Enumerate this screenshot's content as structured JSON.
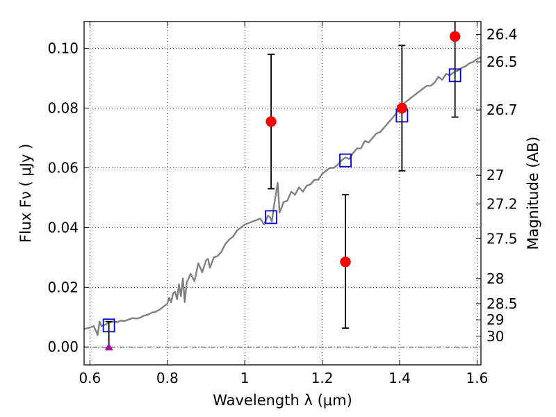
{
  "chart_data": {
    "type": "scatter",
    "xlabel": "Wavelength  λ (μm)",
    "ylabel": "Flux  Fν  ( μJy )",
    "y2label": "Magnitude (AB)",
    "xlim": [
      0.585,
      1.61
    ],
    "ylim": [
      -0.006,
      0.109
    ],
    "grid": true,
    "xticks": [
      {
        "v": 0.6,
        "label": "0.6"
      },
      {
        "v": 0.8,
        "label": "0.8"
      },
      {
        "v": 1.0,
        "label": "1"
      },
      {
        "v": 1.2,
        "label": "1.2"
      },
      {
        "v": 1.4,
        "label": "1.4"
      },
      {
        "v": 1.6,
        "label": "1.6"
      }
    ],
    "yticks": [
      {
        "v": 0.0,
        "label": "0.00"
      },
      {
        "v": 0.02,
        "label": "0.02"
      },
      {
        "v": 0.04,
        "label": "0.04"
      },
      {
        "v": 0.06,
        "label": "0.06"
      },
      {
        "v": 0.08,
        "label": "0.08"
      },
      {
        "v": 0.1,
        "label": "0.10"
      }
    ],
    "magnitude_ticks": [
      {
        "v": 0.1047,
        "label": "26.4"
      },
      {
        "v": 0.0955,
        "label": "26.5"
      },
      {
        "v": 0.0794,
        "label": "26.7"
      },
      {
        "v": 0.0575,
        "label": "27"
      },
      {
        "v": 0.0479,
        "label": "27.2"
      },
      {
        "v": 0.0363,
        "label": "27.5"
      },
      {
        "v": 0.0229,
        "label": "28"
      },
      {
        "v": 0.0145,
        "label": "28.5"
      },
      {
        "v": 0.0091,
        "label": "29"
      },
      {
        "v": 0.0036,
        "label": "30"
      }
    ],
    "sed_model": {
      "color": "#808080",
      "x": [
        0.585,
        0.6,
        0.61,
        0.62,
        0.625,
        0.63,
        0.64,
        0.65,
        0.66,
        0.67,
        0.68,
        0.69,
        0.7,
        0.71,
        0.72,
        0.73,
        0.74,
        0.75,
        0.76,
        0.77,
        0.78,
        0.79,
        0.8,
        0.805,
        0.81,
        0.815,
        0.82,
        0.825,
        0.83,
        0.835,
        0.84,
        0.845,
        0.85,
        0.86,
        0.87,
        0.88,
        0.89,
        0.9,
        0.905,
        0.91,
        0.92,
        0.93,
        0.94,
        0.95,
        0.96,
        0.97,
        0.98,
        0.99,
        1.0,
        1.01,
        1.02,
        1.03,
        1.04,
        1.05,
        1.06,
        1.065,
        1.07,
        1.075,
        1.08,
        1.085,
        1.09,
        1.1,
        1.11,
        1.12,
        1.13,
        1.14,
        1.15,
        1.16,
        1.17,
        1.18,
        1.19,
        1.2,
        1.21,
        1.22,
        1.23,
        1.24,
        1.25,
        1.26,
        1.27,
        1.28,
        1.29,
        1.3,
        1.31,
        1.32,
        1.33,
        1.34,
        1.35,
        1.36,
        1.37,
        1.38,
        1.39,
        1.4,
        1.41,
        1.42,
        1.43,
        1.44,
        1.45,
        1.46,
        1.47,
        1.48,
        1.49,
        1.5,
        1.51,
        1.52,
        1.53,
        1.54,
        1.55,
        1.56,
        1.57,
        1.58,
        1.59,
        1.6,
        1.61
      ],
      "y": [
        0.006,
        0.0065,
        0.007,
        0.004,
        0.0085,
        0.007,
        0.0075,
        0.0082,
        0.0085,
        0.0083,
        0.0088,
        0.0087,
        0.0092,
        0.0097,
        0.0095,
        0.0098,
        0.0105,
        0.0108,
        0.0115,
        0.0118,
        0.0125,
        0.0135,
        0.0145,
        0.0165,
        0.015,
        0.018,
        0.0185,
        0.016,
        0.021,
        0.017,
        0.023,
        0.015,
        0.0215,
        0.0245,
        0.022,
        0.028,
        0.025,
        0.029,
        0.0295,
        0.0265,
        0.03,
        0.0305,
        0.032,
        0.0345,
        0.036,
        0.037,
        0.039,
        0.04,
        0.041,
        0.0415,
        0.042,
        0.0425,
        0.043,
        0.041,
        0.044,
        0.0435,
        0.042,
        0.047,
        0.051,
        0.055,
        0.045,
        0.0485,
        0.049,
        0.052,
        0.051,
        0.0535,
        0.052,
        0.054,
        0.0545,
        0.056,
        0.056,
        0.058,
        0.059,
        0.06,
        0.06,
        0.061,
        0.0625,
        0.0635,
        0.063,
        0.065,
        0.0665,
        0.0665,
        0.069,
        0.0685,
        0.07,
        0.0715,
        0.072,
        0.0735,
        0.075,
        0.0765,
        0.078,
        0.08,
        0.0815,
        0.0825,
        0.0835,
        0.0845,
        0.0855,
        0.0865,
        0.0875,
        0.0875,
        0.0885,
        0.0905,
        0.0895,
        0.0915,
        0.091,
        0.092,
        0.0925,
        0.0935,
        0.094,
        0.095,
        0.0955,
        0.0965,
        0.097
      ]
    },
    "model_photometry": {
      "color": "#0000cc",
      "points": [
        {
          "x": 0.649,
          "y": 0.0072
        },
        {
          "x": 1.068,
          "y": 0.0435
        },
        {
          "x": 1.26,
          "y": 0.0625
        },
        {
          "x": 1.406,
          "y": 0.0775
        },
        {
          "x": 1.543,
          "y": 0.091
        }
      ]
    },
    "observed": {
      "color": "#ff0000",
      "points": [
        {
          "x": 1.068,
          "y": 0.0755,
          "ylo": 0.053,
          "yhi": 0.098
        },
        {
          "x": 1.26,
          "y": 0.0285,
          "ylo": 0.0063,
          "yhi": 0.051
        },
        {
          "x": 1.406,
          "y": 0.08,
          "ylo": 0.059,
          "yhi": 0.101
        },
        {
          "x": 1.543,
          "y": 0.104,
          "ylo": 0.077,
          "yhi": 0.109
        }
      ]
    },
    "upper_limit": {
      "color": "#aa00aa",
      "x": 0.649,
      "y": 0.0,
      "yhi": 0.0085
    }
  }
}
